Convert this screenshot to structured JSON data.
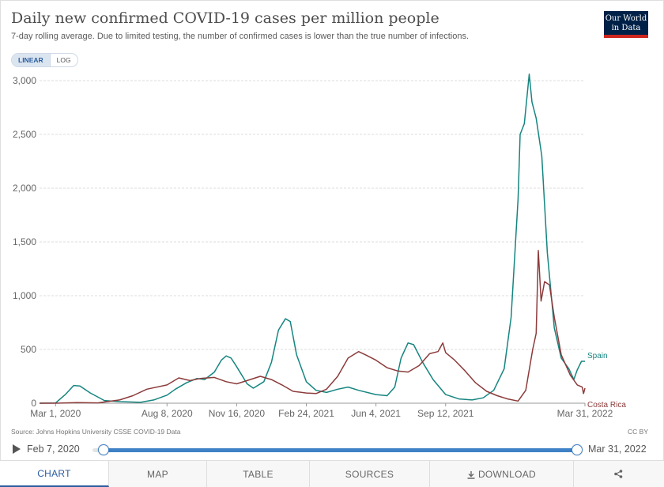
{
  "header": {
    "title": "Daily new confirmed COVID-19 cases per million people",
    "subtitle": "7-day rolling average. Due to limited testing, the number of confirmed cases is lower than the true number of infections.",
    "logo_line1": "Our World",
    "logo_line2": "in Data"
  },
  "scale_toggle": {
    "linear": "LINEAR",
    "log": "LOG",
    "active": "linear"
  },
  "chart_data": {
    "type": "line",
    "title": "Daily new confirmed COVID-19 cases per million people",
    "subtitle": "7-day rolling average. Due to limited testing, the number of confirmed cases is lower than the true number of infections.",
    "xlabel": "",
    "ylabel": "",
    "ylim": [
      0,
      3000
    ],
    "xlim": [
      "2020-02-07",
      "2022-03-31"
    ],
    "yticks": [
      0,
      500,
      1000,
      1500,
      2000,
      2500,
      3000
    ],
    "ytick_labels": [
      "0",
      "500",
      "1,000",
      "1,500",
      "2,000",
      "2,500",
      "3,000"
    ],
    "xticks": [
      "2020-03-01",
      "2020-08-08",
      "2020-11-16",
      "2021-02-24",
      "2021-06-04",
      "2021-09-12",
      "2022-03-31"
    ],
    "xtick_labels": [
      "Mar 1, 2020",
      "Aug 8, 2020",
      "Nov 16, 2020",
      "Feb 24, 2021",
      "Jun 4, 2021",
      "Sep 12, 2021",
      "Mar 31, 2022"
    ],
    "grid": true,
    "legend": "inline-right",
    "series": [
      {
        "name": "Spain",
        "color": "#158580",
        "points": [
          [
            "2020-02-07",
            0
          ],
          [
            "2020-03-01",
            2
          ],
          [
            "2020-03-15",
            80
          ],
          [
            "2020-03-27",
            165
          ],
          [
            "2020-04-05",
            160
          ],
          [
            "2020-04-20",
            95
          ],
          [
            "2020-05-10",
            25
          ],
          [
            "2020-06-01",
            15
          ],
          [
            "2020-07-01",
            8
          ],
          [
            "2020-07-20",
            30
          ],
          [
            "2020-08-08",
            75
          ],
          [
            "2020-08-20",
            130
          ],
          [
            "2020-09-05",
            190
          ],
          [
            "2020-09-20",
            230
          ],
          [
            "2020-10-01",
            220
          ],
          [
            "2020-10-15",
            290
          ],
          [
            "2020-10-25",
            400
          ],
          [
            "2020-11-01",
            440
          ],
          [
            "2020-11-08",
            420
          ],
          [
            "2020-11-16",
            340
          ],
          [
            "2020-12-01",
            180
          ],
          [
            "2020-12-10",
            140
          ],
          [
            "2020-12-25",
            200
          ],
          [
            "2021-01-05",
            380
          ],
          [
            "2021-01-15",
            680
          ],
          [
            "2021-01-25",
            785
          ],
          [
            "2021-02-01",
            760
          ],
          [
            "2021-02-10",
            450
          ],
          [
            "2021-02-24",
            200
          ],
          [
            "2021-03-10",
            120
          ],
          [
            "2021-03-25",
            100
          ],
          [
            "2021-04-10",
            130
          ],
          [
            "2021-04-25",
            150
          ],
          [
            "2021-05-10",
            120
          ],
          [
            "2021-06-04",
            80
          ],
          [
            "2021-06-20",
            70
          ],
          [
            "2021-07-01",
            150
          ],
          [
            "2021-07-10",
            420
          ],
          [
            "2021-07-20",
            560
          ],
          [
            "2021-07-28",
            545
          ],
          [
            "2021-08-10",
            380
          ],
          [
            "2021-08-25",
            220
          ],
          [
            "2021-09-12",
            80
          ],
          [
            "2021-10-01",
            40
          ],
          [
            "2021-10-20",
            30
          ],
          [
            "2021-11-05",
            50
          ],
          [
            "2021-11-20",
            120
          ],
          [
            "2021-12-05",
            320
          ],
          [
            "2021-12-15",
            800
          ],
          [
            "2021-12-25",
            1900
          ],
          [
            "2021-12-28",
            2500
          ],
          [
            "2022-01-03",
            2600
          ],
          [
            "2022-01-10",
            3060
          ],
          [
            "2022-01-14",
            2800
          ],
          [
            "2022-01-20",
            2650
          ],
          [
            "2022-01-28",
            2300
          ],
          [
            "2022-02-05",
            1400
          ],
          [
            "2022-02-15",
            700
          ],
          [
            "2022-02-25",
            420
          ],
          [
            "2022-03-08",
            320
          ],
          [
            "2022-03-15",
            220
          ],
          [
            "2022-03-20",
            310
          ],
          [
            "2022-03-26",
            390
          ],
          [
            "2022-03-31",
            390
          ]
        ]
      },
      {
        "name": "Costa Rica",
        "color": "#8c3b3b",
        "points": [
          [
            "2020-02-07",
            0
          ],
          [
            "2020-03-01",
            0
          ],
          [
            "2020-04-01",
            5
          ],
          [
            "2020-05-01",
            3
          ],
          [
            "2020-06-01",
            30
          ],
          [
            "2020-06-20",
            70
          ],
          [
            "2020-07-10",
            130
          ],
          [
            "2020-08-08",
            170
          ],
          [
            "2020-08-25",
            235
          ],
          [
            "2020-09-10",
            210
          ],
          [
            "2020-09-25",
            230
          ],
          [
            "2020-10-15",
            240
          ],
          [
            "2020-11-01",
            200
          ],
          [
            "2020-11-16",
            180
          ],
          [
            "2020-12-01",
            210
          ],
          [
            "2020-12-20",
            250
          ],
          [
            "2021-01-05",
            220
          ],
          [
            "2021-01-20",
            170
          ],
          [
            "2021-02-05",
            110
          ],
          [
            "2021-02-24",
            95
          ],
          [
            "2021-03-10",
            90
          ],
          [
            "2021-03-25",
            130
          ],
          [
            "2021-04-10",
            250
          ],
          [
            "2021-04-25",
            420
          ],
          [
            "2021-05-10",
            480
          ],
          [
            "2021-05-20",
            450
          ],
          [
            "2021-06-04",
            400
          ],
          [
            "2021-06-20",
            330
          ],
          [
            "2021-07-05",
            300
          ],
          [
            "2021-07-20",
            290
          ],
          [
            "2021-08-05",
            350
          ],
          [
            "2021-08-20",
            460
          ],
          [
            "2021-09-01",
            480
          ],
          [
            "2021-09-08",
            560
          ],
          [
            "2021-09-12",
            470
          ],
          [
            "2021-09-25",
            400
          ],
          [
            "2021-10-10",
            300
          ],
          [
            "2021-10-25",
            190
          ],
          [
            "2021-11-10",
            110
          ],
          [
            "2021-11-25",
            70
          ],
          [
            "2021-12-10",
            40
          ],
          [
            "2021-12-25",
            20
          ],
          [
            "2022-01-05",
            120
          ],
          [
            "2022-01-15",
            500
          ],
          [
            "2022-01-20",
            650
          ],
          [
            "2022-01-23",
            1420
          ],
          [
            "2022-01-27",
            950
          ],
          [
            "2022-02-01",
            1130
          ],
          [
            "2022-02-08",
            1100
          ],
          [
            "2022-02-15",
            800
          ],
          [
            "2022-02-25",
            450
          ],
          [
            "2022-03-10",
            260
          ],
          [
            "2022-03-20",
            170
          ],
          [
            "2022-03-27",
            150
          ],
          [
            "2022-03-29",
            90
          ],
          [
            "2022-03-31",
            140
          ]
        ]
      }
    ]
  },
  "footer": {
    "source": "Source: Johns Hopkins University CSSE COVID-19 Data",
    "license": "CC BY"
  },
  "timeline": {
    "start_label": "Feb 7, 2020",
    "end_label": "Mar 31, 2022"
  },
  "tabs": [
    {
      "label": "CHART"
    },
    {
      "label": "MAP"
    },
    {
      "label": "TABLE"
    },
    {
      "label": "SOURCES"
    },
    {
      "label": "DOWNLOAD"
    }
  ]
}
